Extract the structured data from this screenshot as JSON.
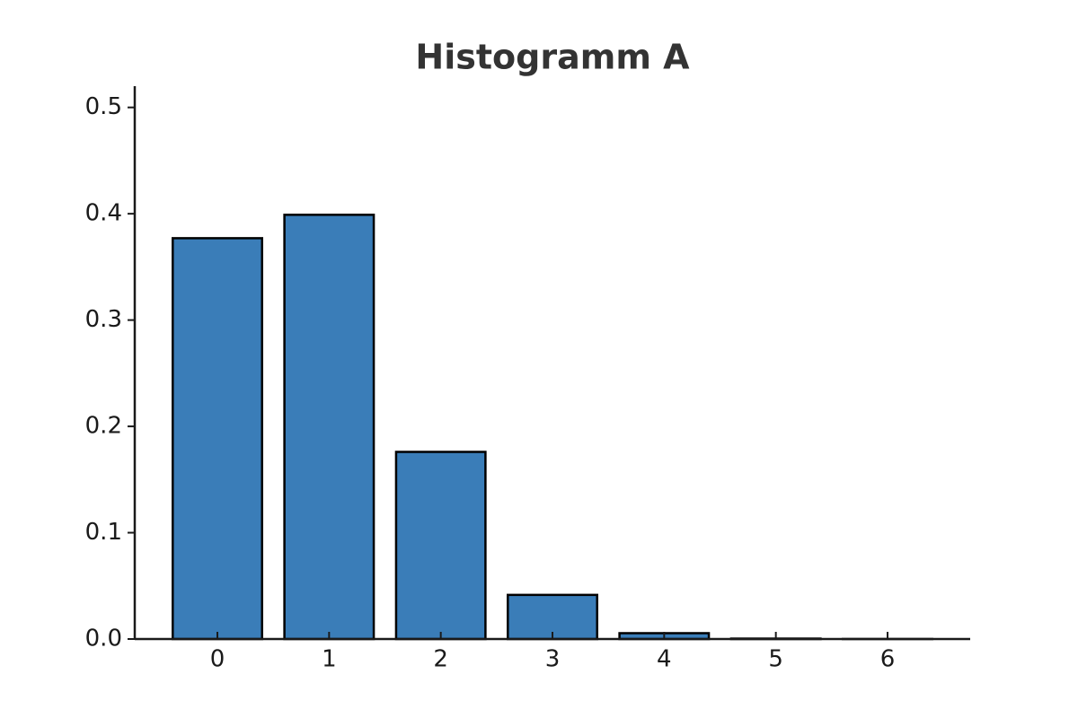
{
  "chart_data": {
    "type": "bar",
    "title": "Histogramm A",
    "x": [
      0,
      1,
      2,
      3,
      4,
      5,
      6
    ],
    "values": [
      0.377,
      0.399,
      0.176,
      0.0415,
      0.0055,
      0.0004,
      1e-05
    ],
    "color": "#3a7db8",
    "edgecolor": "#000000",
    "bar_width": 0.8,
    "xlim": [
      -0.74,
      6.74
    ],
    "xticks": [
      0,
      1,
      2,
      3,
      4,
      5,
      6
    ],
    "ylim": [
      0,
      0.52
    ],
    "yticks": [
      {
        "value": 0,
        "label": "0.0"
      },
      0.1,
      0.2,
      0.3,
      0.4,
      0.5
    ],
    "grid": false
  }
}
